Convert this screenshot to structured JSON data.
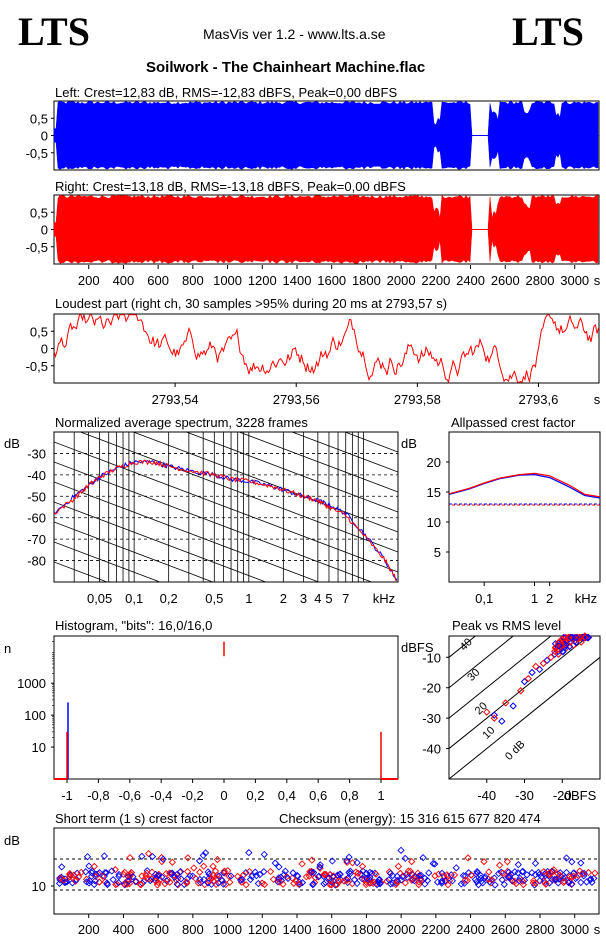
{
  "header": {
    "logo_left": "LTS",
    "logo_right": "LTS",
    "app": "MasVis ver 1.2 - www.lts.a.se",
    "file": "Soilwork - The Chainheart Machine.flac"
  },
  "chart_data": [
    {
      "id": "left",
      "type": "waveform",
      "title": "Left: Crest=12,83 dB, RMS=-12,83 dBFS, Peak=0,00 dBFS",
      "ylim": [
        -1,
        1
      ],
      "yticks": [
        "0,5",
        "0",
        "-0,5"
      ],
      "color": "#0000ff"
    },
    {
      "id": "right",
      "type": "waveform",
      "title": "Right: Crest=13,18 dB, RMS=-13,18 dBFS, Peak=0,00 dBFS",
      "ylim": [
        -1,
        1
      ],
      "yticks": [
        "0,5",
        "0",
        "-0,5"
      ],
      "xticks": [
        "200",
        "400",
        "600",
        "800",
        "1000",
        "1200",
        "1400",
        "1600",
        "1800",
        "2000",
        "2200",
        "2400",
        "2600",
        "2800",
        "3000",
        "s"
      ],
      "color": "#ff0000"
    },
    {
      "id": "loudest",
      "type": "line",
      "title": "Loudest part (right ch, 30 samples >95% during 20 ms at 2793,57 s)",
      "xlim": [
        2793.52,
        2793.61
      ],
      "ylim": [
        -1,
        1
      ],
      "yticks": [
        "0,5",
        "0",
        "-0,5"
      ],
      "xticks": [
        "2793,54",
        "2793,56",
        "2793,58",
        "2793,6",
        "s"
      ],
      "color": "#ff0000"
    },
    {
      "id": "spectrum",
      "type": "line",
      "title": "Normalized average spectrum, 3228 frames",
      "ylabel": "dB",
      "xlabel": "kHz",
      "scale": "log",
      "xlim": [
        0.02,
        20
      ],
      "ylim": [
        -90,
        -20
      ],
      "yticks": [
        "-30",
        "-40",
        "-50",
        "-60",
        "-70",
        "-80"
      ],
      "xticks": [
        "0,05",
        "0,1",
        "0,2",
        "0,5",
        "1",
        "2",
        "3",
        "4",
        "5",
        "7",
        "kHz"
      ],
      "series": [
        {
          "color": "#0000ff",
          "x": [
            0.02,
            0.03,
            0.04,
            0.05,
            0.07,
            0.1,
            0.15,
            0.2,
            0.3,
            0.5,
            0.7,
            1,
            1.5,
            2,
            3,
            4,
            5,
            7,
            10,
            15,
            20
          ],
          "y": [
            -58,
            -50,
            -45,
            -41,
            -37,
            -34,
            -34,
            -36,
            -38,
            -40,
            -42,
            -43,
            -45,
            -47,
            -50,
            -52,
            -54,
            -58,
            -67,
            -79,
            -90
          ]
        },
        {
          "color": "#ff0000",
          "x": [
            0.02,
            0.03,
            0.04,
            0.05,
            0.07,
            0.1,
            0.15,
            0.2,
            0.3,
            0.5,
            0.7,
            1,
            1.5,
            2,
            3,
            4,
            5,
            7,
            10,
            15,
            20
          ],
          "y": [
            -58,
            -51,
            -45,
            -41,
            -37,
            -34,
            -34,
            -36,
            -38,
            -40,
            -42,
            -43,
            -45,
            -47,
            -50,
            -52,
            -55,
            -59,
            -68,
            -79,
            -90
          ]
        }
      ]
    },
    {
      "id": "allpass",
      "type": "line",
      "title": "Allpassed crest factor",
      "ylabel": "dB",
      "xlabel": "kHz",
      "scale": "log",
      "xlim": [
        0.02,
        20
      ],
      "ylim": [
        0,
        25
      ],
      "yticks": [
        "20",
        "15",
        "10",
        "5"
      ],
      "xticks": [
        "0,1",
        "1",
        "2",
        "kHz"
      ],
      "reference": 13,
      "series": [
        {
          "color": "#0000ff",
          "x": [
            0.02,
            0.05,
            0.1,
            0.2,
            0.5,
            1,
            2,
            5,
            10,
            20
          ],
          "y": [
            14.6,
            15.5,
            16.4,
            17.2,
            17.8,
            17.9,
            17.4,
            15.8,
            14.4,
            14.0
          ]
        },
        {
          "color": "#ff0000",
          "x": [
            0.02,
            0.05,
            0.1,
            0.2,
            0.5,
            1,
            2,
            5,
            10,
            20
          ],
          "y": [
            14.7,
            15.6,
            16.5,
            17.3,
            17.9,
            18.1,
            17.7,
            16.1,
            14.6,
            14.2
          ]
        }
      ]
    },
    {
      "id": "histogram",
      "type": "area",
      "title": "Histogram, \"bits\": 16,0/16,0",
      "ylabel": "n",
      "scale": "log",
      "xlim": [
        -1,
        1
      ],
      "yticks": [
        "1000",
        "100",
        "10"
      ],
      "xticks": [
        "-1",
        "-0,8",
        "-0,6",
        "-0,4",
        "-0,2",
        "0",
        "0,2",
        "0,4",
        "0,6",
        "0,8",
        "1"
      ]
    },
    {
      "id": "peakrms",
      "type": "scatter",
      "title": "Peak vs RMS level",
      "ylabel": "dBFS",
      "xlabel": "dBFS",
      "xlim": [
        -50,
        -10
      ],
      "ylim": [
        -50,
        -3
      ],
      "yticks": [
        "-10",
        "-20",
        "-30",
        "-40"
      ],
      "xticks": [
        "-40",
        "-30",
        "-20",
        "dBFS"
      ],
      "diagonals": [
        "40",
        "30",
        "20",
        "10",
        "0 dB"
      ],
      "series": [
        {
          "color": "#0000ff",
          "x": [
            -38,
            -36,
            -33,
            -30,
            -28,
            -26,
            -24,
            -22,
            -21,
            -20,
            -19,
            -18,
            -17
          ],
          "y": [
            -29,
            -31,
            -26,
            -18,
            -15,
            -14,
            -11,
            -9,
            -8,
            -7,
            -6,
            -5,
            -4
          ]
        },
        {
          "color": "#ff0000",
          "x": [
            -40,
            -38,
            -35,
            -31,
            -29,
            -27,
            -25,
            -23,
            -22,
            -21,
            -20,
            -19,
            -18,
            -17,
            -16,
            -15,
            -14
          ],
          "y": [
            -28,
            -30,
            -25,
            -21,
            -17,
            -13,
            -12,
            -10,
            -8,
            -9,
            -6,
            -7,
            -5,
            -6,
            -4,
            -5,
            -3
          ]
        }
      ]
    },
    {
      "id": "crest",
      "type": "scatter",
      "title": "Short term (1 s) crest factor",
      "checksum": "Checksum (energy):  15 316 615 677 820 474",
      "ylabel": "dB",
      "yticks": [
        "10"
      ],
      "xticks": [
        "200",
        "400",
        "600",
        "800",
        "1000",
        "1200",
        "1400",
        "1600",
        "1800",
        "2000",
        "2200",
        "2400",
        "2600",
        "2800",
        "3000",
        "s"
      ],
      "xlim": [
        0,
        3140
      ],
      "ylim": [
        5,
        20
      ]
    }
  ]
}
